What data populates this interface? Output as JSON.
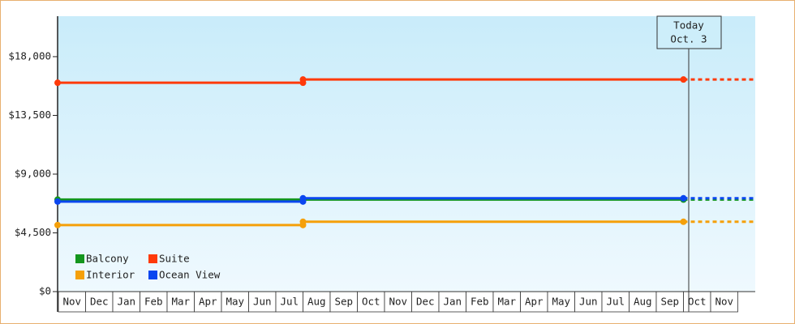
{
  "chart_data": {
    "type": "line",
    "step": true,
    "categories": [
      "Nov",
      "Dec",
      "Jan",
      "Feb",
      "Mar",
      "Apr",
      "May",
      "Jun",
      "Jul",
      "Aug",
      "Sep",
      "Oct",
      "Nov",
      "Dec",
      "Jan",
      "Feb",
      "Mar",
      "Apr",
      "May",
      "Jun",
      "Jul",
      "Aug",
      "Sep",
      "Oct",
      "Nov"
    ],
    "series": [
      {
        "name": "Balcony",
        "color": "#14961e",
        "values": [
          7050,
          7050,
          7050,
          7050,
          7050,
          7050,
          7050,
          7050,
          7050,
          7050,
          7050,
          7050,
          7050,
          7050,
          7050,
          7050,
          7050,
          7050,
          7050,
          7050,
          7050,
          7050,
          7050,
          7050,
          null
        ]
      },
      {
        "name": "Suite",
        "color": "#ff3a0a",
        "values": [
          16000,
          16000,
          16000,
          16000,
          16000,
          16000,
          16000,
          16000,
          16000,
          16250,
          16250,
          16250,
          16250,
          16250,
          16250,
          16250,
          16250,
          16250,
          16250,
          16250,
          16250,
          16250,
          16250,
          16250,
          null
        ]
      },
      {
        "name": "Interior",
        "color": "#f5a00a",
        "values": [
          5100,
          5100,
          5100,
          5100,
          5100,
          5100,
          5100,
          5100,
          5100,
          5350,
          5350,
          5350,
          5350,
          5350,
          5350,
          5350,
          5350,
          5350,
          5350,
          5350,
          5350,
          5350,
          5350,
          5350,
          null
        ]
      },
      {
        "name": "Ocean View",
        "color": "#0a46f0",
        "values": [
          6900,
          6900,
          6900,
          6900,
          6900,
          6900,
          6900,
          6900,
          6900,
          7150,
          7150,
          7150,
          7150,
          7150,
          7150,
          7150,
          7150,
          7150,
          7150,
          7150,
          7150,
          7150,
          7150,
          7150,
          null
        ]
      }
    ],
    "ylim": [
      0,
      21100
    ],
    "yticks": [
      {
        "value": 0,
        "label": "$0"
      },
      {
        "value": 4500,
        "label": "$4,500"
      },
      {
        "value": 9000,
        "label": "$9,000"
      },
      {
        "value": 13500,
        "label": "$13,500"
      },
      {
        "value": 18000,
        "label": "$18,000"
      }
    ],
    "today": {
      "title": "Today",
      "date": "Oct. 3"
    },
    "legend": "lower-left"
  }
}
